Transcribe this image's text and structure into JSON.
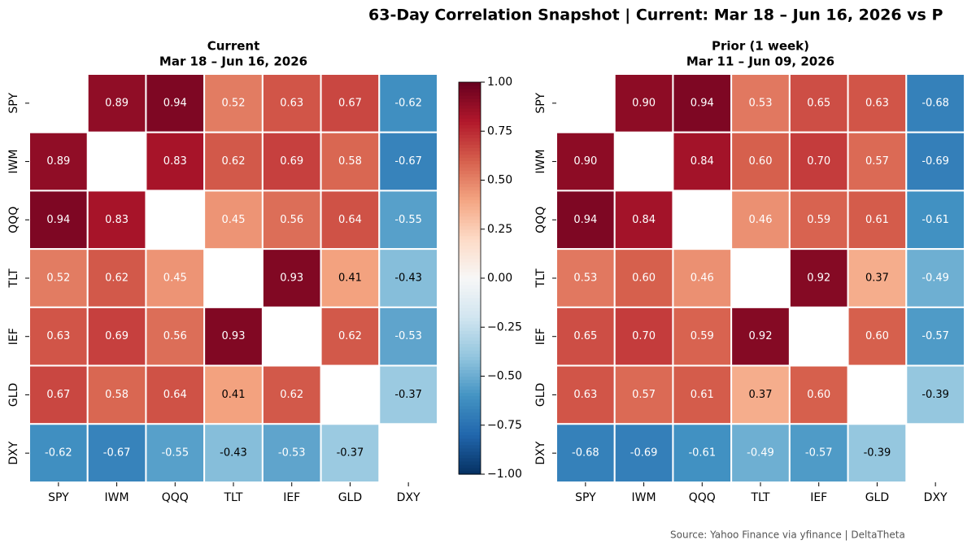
{
  "title": "63-Day Correlation Snapshot  |  Current: Mar 18 – Jun 16, 2026  vs  P",
  "source": "Source: Yahoo Finance via yfinance  |  DeltaTheta",
  "chart_data": [
    {
      "type": "heatmap",
      "title": "Current",
      "subtitle": "Mar 18 – Jun 16, 2026",
      "categories": [
        "SPY",
        "IWM",
        "QQQ",
        "TLT",
        "IEF",
        "GLD",
        "DXY"
      ],
      "colormap": "RdBu_r",
      "clim": [
        -1,
        1
      ],
      "values": [
        [
          null,
          0.89,
          0.94,
          0.52,
          0.63,
          0.67,
          -0.62
        ],
        [
          0.89,
          null,
          0.83,
          0.62,
          0.69,
          0.58,
          -0.67
        ],
        [
          0.94,
          0.83,
          null,
          0.45,
          0.56,
          0.64,
          -0.55
        ],
        [
          0.52,
          0.62,
          0.45,
          null,
          0.93,
          0.41,
          -0.43
        ],
        [
          0.63,
          0.69,
          0.56,
          0.93,
          null,
          0.62,
          -0.53
        ],
        [
          0.67,
          0.58,
          0.64,
          0.41,
          0.62,
          null,
          -0.37
        ],
        [
          -0.62,
          -0.67,
          -0.55,
          -0.43,
          -0.53,
          -0.37,
          null
        ]
      ],
      "value_labels": [
        [
          null,
          "0.89",
          "0.94",
          "0.52",
          "0.63",
          "0.67",
          "-0.62"
        ],
        [
          "0.89",
          null,
          "0.83",
          "0.62",
          "0.69",
          "0.58",
          "-0.67"
        ],
        [
          "0.94",
          "0.83",
          null,
          "0.45",
          "0.56",
          "0.64",
          "-0.55"
        ],
        [
          "0.52",
          "0.62",
          "0.45",
          null,
          "0.93",
          "0.41",
          "-0.43"
        ],
        [
          "0.63",
          "0.69",
          "0.56",
          "0.93",
          null,
          "0.62",
          "-0.53"
        ],
        [
          "0.67",
          "0.58",
          "0.64",
          "0.41",
          "0.62",
          null,
          "-0.37"
        ],
        [
          "-0.62",
          "-0.67",
          "-0.55",
          "-0.43",
          "-0.53",
          "-0.37",
          null
        ]
      ],
      "colorbar_ticks": [
        {
          "value": 1,
          "label": "1.00"
        },
        0.75,
        {
          "value": 0.5,
          "label": "0.50"
        },
        0.25,
        {
          "value": 0,
          "label": "0.00"
        },
        {
          "value": -0.25,
          "label": "−0.25"
        },
        {
          "value": -0.5,
          "label": "−0.50"
        },
        {
          "value": -0.75,
          "label": "−0.75"
        },
        {
          "value": -1,
          "label": "−1.00"
        }
      ]
    },
    {
      "type": "heatmap",
      "title": "Prior (1 week)",
      "subtitle": "Mar 11 – Jun 09, 2026",
      "categories": [
        "SPY",
        "IWM",
        "QQQ",
        "TLT",
        "IEF",
        "GLD",
        "DXY"
      ],
      "colormap": "RdBu_r",
      "clim": [
        -1,
        1
      ],
      "values": [
        [
          null,
          0.9,
          0.94,
          0.53,
          0.65,
          0.63,
          -0.68
        ],
        [
          0.9,
          null,
          0.84,
          0.6,
          0.7,
          0.57,
          -0.69
        ],
        [
          0.94,
          0.84,
          null,
          0.46,
          0.59,
          0.61,
          -0.61
        ],
        [
          0.53,
          0.6,
          0.46,
          null,
          0.92,
          0.37,
          -0.49
        ],
        [
          0.65,
          0.7,
          0.59,
          0.92,
          null,
          0.6,
          -0.57
        ],
        [
          0.63,
          0.57,
          0.61,
          0.37,
          0.6,
          null,
          -0.39
        ],
        [
          -0.68,
          -0.69,
          -0.61,
          -0.49,
          -0.57,
          -0.39,
          null
        ]
      ],
      "value_labels": [
        [
          null,
          "0.90",
          "0.94",
          "0.53",
          "0.65",
          "0.63",
          "-0.68"
        ],
        [
          "0.90",
          null,
          "0.84",
          "0.60",
          "0.70",
          "0.57",
          "-0.69"
        ],
        [
          "0.94",
          "0.84",
          null,
          "0.46",
          "0.59",
          "0.61",
          "-0.61"
        ],
        [
          "0.53",
          "0.60",
          "0.46",
          null,
          "0.92",
          "0.37",
          "-0.49"
        ],
        [
          "0.65",
          "0.70",
          "0.59",
          "0.92",
          null,
          "0.60",
          "-0.57"
        ],
        [
          "0.63",
          "0.57",
          "0.61",
          "0.37",
          "0.60",
          null,
          "-0.39"
        ],
        [
          "-0.68",
          "-0.69",
          "-0.61",
          "-0.49",
          "-0.57",
          "-0.39",
          null
        ]
      ]
    }
  ]
}
